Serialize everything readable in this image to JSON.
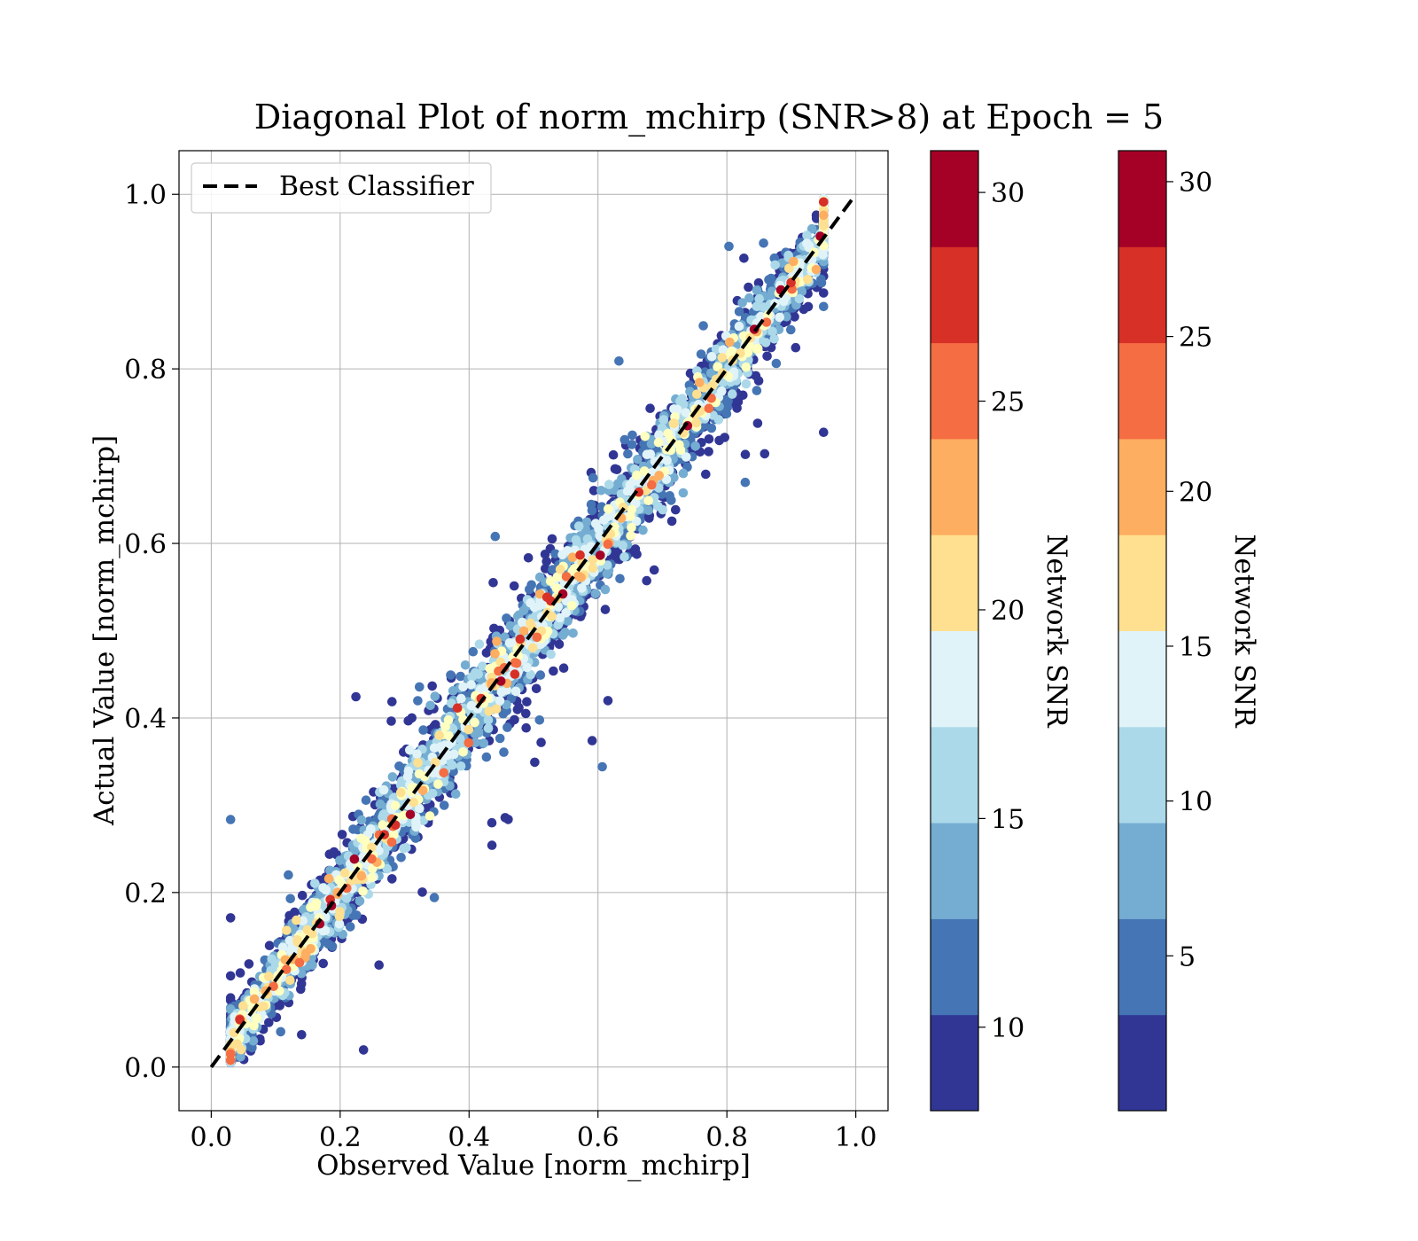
{
  "chart_data": {
    "type": "scatter",
    "title": "Diagonal Plot of norm_mchirp (SNR>8) at Epoch = 5",
    "xlabel": "Observed Value [norm_mchirp]",
    "ylabel": "Actual Value [norm_mchirp]",
    "xlim": [
      -0.05,
      1.05
    ],
    "ylim": [
      -0.05,
      1.05
    ],
    "x_ticks": [
      "0.0",
      "0.2",
      "0.4",
      "0.6",
      "0.8",
      "1.0"
    ],
    "y_ticks": [
      "0.0",
      "0.2",
      "0.4",
      "0.6",
      "0.8",
      "1.0"
    ],
    "grid": true,
    "legend": {
      "position": "upper-left",
      "entries": [
        {
          "label": "Best Classifier",
          "style": "black dashed line"
        }
      ]
    },
    "reference_line": {
      "label": "Best Classifier",
      "x": [
        0.0,
        1.0
      ],
      "y": [
        0.0,
        1.0
      ],
      "color": "#000000"
    },
    "colormap": [
      "#313695",
      "#4575b4",
      "#74add1",
      "#abd9e9",
      "#e0f3f8",
      "#ffffbf",
      "#fee090",
      "#fdae61",
      "#f46d43",
      "#d73027",
      "#a50026"
    ],
    "colormap_name": "RdYlBu_r (discrete, 10 bins)",
    "points": {
      "count": 5000,
      "x_range": [
        0.03,
        0.95
      ],
      "y_range": [
        0.0,
        1.0
      ],
      "distribution": "scattered around the diagonal y = x; spread widens toward lower-SNR points",
      "color_variable": "Network SNR"
    },
    "colorbars": [
      {
        "label": "Network SNR",
        "range": [
          8,
          31
        ],
        "ticks": [
          10,
          15,
          20,
          25,
          30
        ]
      },
      {
        "label": "Network SNR",
        "range": [
          0,
          31
        ],
        "ticks": [
          5,
          10,
          15,
          20,
          25,
          30
        ]
      }
    ]
  }
}
